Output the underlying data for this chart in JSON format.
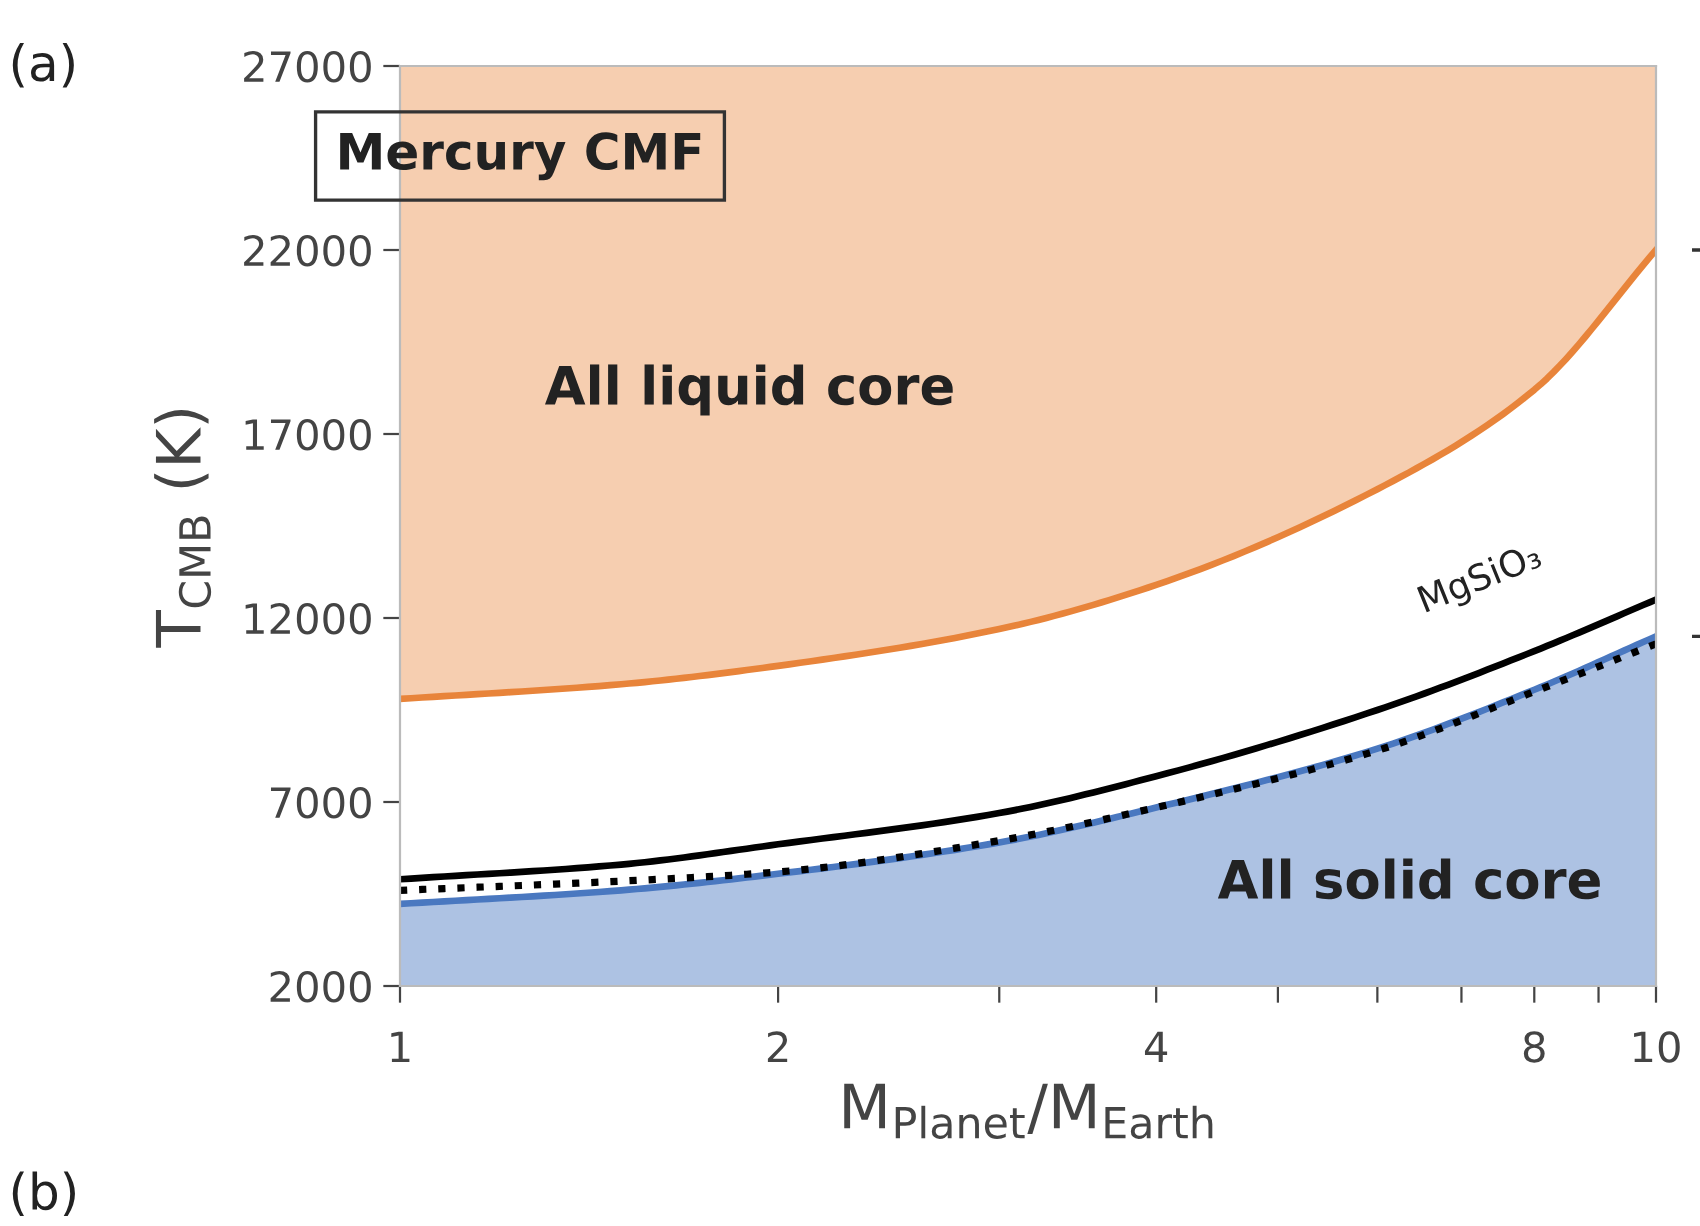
{
  "chart_data": {
    "type": "line",
    "xlabel": "M$_{Planet}$/M$_{Earth}$",
    "ylabel": "T$_{CMB}$ (K)",
    "x": [
      1,
      1.5,
      2,
      3,
      4,
      6,
      8,
      10
    ],
    "series": [
      {
        "color": "#e8843a",
        "values": [
          9800,
          10200,
          10700,
          11700,
          12900,
          15500,
          18200,
          22000
        ],
        "lower": [
          9800,
          10200,
          10700,
          11700,
          12900,
          15500,
          18200,
          22000
        ],
        "upper": [
          27000,
          27000,
          27000,
          27000,
          27000,
          27000,
          27000,
          27000
        ]
      },
      {
        "type": "area",
        "color": "#4a78c0",
        "values": [
          4230,
          4600,
          5050,
          5900,
          6850,
          8450,
          10050,
          11500
        ]
      },
      {
        "color": "#000000",
        "values": [
          4600,
          4850,
          5100,
          5950,
          6850,
          8400,
          10000,
          11300
        ],
        "line_style": "dotted"
      },
      {
        "color": "#000000",
        "values": [
          4900,
          5300,
          5850,
          6700,
          7700,
          9500,
          11100,
          12500
        ]
      }
    ],
    "log": "x",
    "xlim": [
      1,
      10
    ],
    "ylim": [
      2000,
      27000
    ],
    "xticks": [
      1,
      2,
      {
        "value": 3,
        "label": null
      },
      4,
      {
        "value": 5,
        "label": null
      },
      {
        "value": 6,
        "label": null
      },
      {
        "value": 7,
        "label": null
      },
      8,
      {
        "value": 9,
        "label": null
      },
      10
    ],
    "yticks": [
      2000,
      7000,
      12000,
      17000,
      22000,
      27000
    ],
    "grid": false,
    "legend": false,
    "annotations": [
      "(a)",
      "Mercury CMF",
      "All liquid core",
      "All solid core",
      "MgSiO₃",
      "(b)"
    ]
  }
}
